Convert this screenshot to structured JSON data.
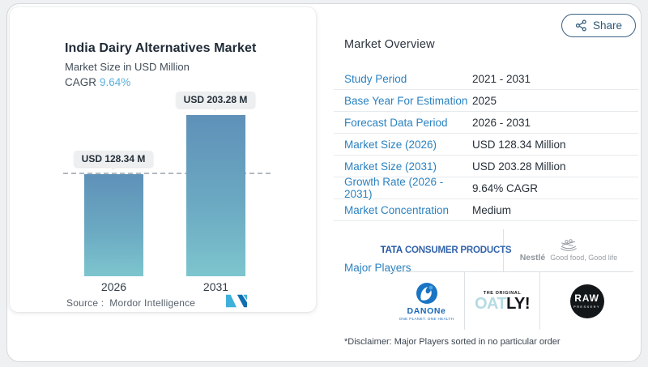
{
  "share": {
    "label": "Share"
  },
  "chart_card": {
    "title": "India Dairy Alternatives Market",
    "subtitle": "Market Size in USD Million",
    "cagr_label": "CAGR",
    "cagr_value": "9.64%",
    "source_label": "Source :",
    "source_value": "Mordor Intelligence"
  },
  "chart_data": {
    "type": "bar",
    "title": "India Dairy Alternatives Market",
    "subtitle": "Market Size in USD Million",
    "ylabel": "Market Size (USD Million)",
    "categories": [
      "2026",
      "2031"
    ],
    "values": [
      128.34,
      203.28
    ],
    "value_labels": [
      "USD 128.34 M",
      "USD 203.28 M"
    ],
    "unit": "USD Million",
    "cagr_percent": 9.64,
    "ylim": [
      0,
      210
    ],
    "grid": false,
    "reference_line": {
      "style": "dashed",
      "at_value": 128.34
    },
    "bar_gradient": [
      "#5f91b8",
      "#7dc5ce"
    ]
  },
  "overview": {
    "title": "Market Overview",
    "rows": [
      {
        "label": "Study Period",
        "value": "2021 - 2031"
      },
      {
        "label": "Base Year For Estimation",
        "value": "2025"
      },
      {
        "label": "Forecast Data Period",
        "value": "2026 - 2031"
      },
      {
        "label": "Market Size (2026)",
        "value": "USD 128.34 Million"
      },
      {
        "label": "Market Size (2031)",
        "value": "USD 203.28 Million"
      },
      {
        "label": "Growth Rate (2026 - 2031)",
        "value": "9.64% CAGR"
      },
      {
        "label": "Market Concentration",
        "value": "Medium"
      }
    ],
    "major_players_label": "Major Players",
    "major_players": [
      "Tata Consumer Products",
      "Nestlé",
      "Danone",
      "Oatly",
      "Raw Pressery"
    ],
    "disclaimer": "*Disclaimer: Major Players sorted in no particular order"
  },
  "logos": {
    "tata": {
      "bold": "TATA",
      "rest": "CONSUMER PRODUCTS"
    },
    "nestle": {
      "name": "Nestlé",
      "tagline": "Good food, Good life"
    },
    "danone": {
      "name": "DANONe",
      "tagline": "ONE PLANET. ONE HEALTH"
    },
    "oatly": {
      "top": "THE ORIGINAL",
      "oat": "OAT",
      "ly": "LY!"
    },
    "raw": {
      "name": "RAW",
      "sub": "PRESSERY"
    }
  },
  "colors": {
    "label_blue": "#2b82c0",
    "cagr_blue": "#5bb0de",
    "bar_top": "#5f91b8",
    "bar_bottom": "#7dc5ce",
    "share_blue": "#2e5878",
    "card_border": "#d5d9dd"
  }
}
